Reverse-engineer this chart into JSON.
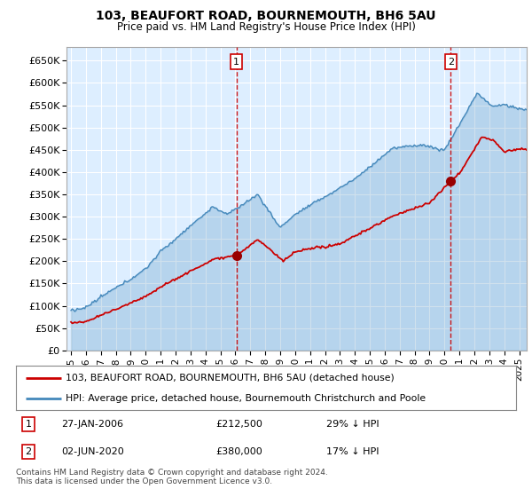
{
  "title": "103, BEAUFORT ROAD, BOURNEMOUTH, BH6 5AU",
  "subtitle": "Price paid vs. HM Land Registry's House Price Index (HPI)",
  "ylim": [
    0,
    680000
  ],
  "ytick_vals": [
    0,
    50000,
    100000,
    150000,
    200000,
    250000,
    300000,
    350000,
    400000,
    450000,
    500000,
    550000,
    600000,
    650000
  ],
  "ytick_labels": [
    "£0",
    "£50K",
    "£100K",
    "£150K",
    "£200K",
    "£250K",
    "£300K",
    "£350K",
    "£400K",
    "£450K",
    "£500K",
    "£550K",
    "£600K",
    "£650K"
  ],
  "xlim_start": 1994.7,
  "xlim_end": 2025.5,
  "background_color": "#ffffff",
  "plot_bg_color": "#ddeeff",
  "grid_color": "#ffffff",
  "sale1_x": 2006.08,
  "sale1_y": 212500,
  "sale2_x": 2020.42,
  "sale2_y": 380000,
  "legend_line1": "103, BEAUFORT ROAD, BOURNEMOUTH, BH6 5AU (detached house)",
  "legend_line2": "HPI: Average price, detached house, Bournemouth Christchurch and Poole",
  "footer": "Contains HM Land Registry data © Crown copyright and database right 2024.\nThis data is licensed under the Open Government Licence v3.0.",
  "line_color_red": "#cc0000",
  "line_color_blue": "#4488bb",
  "fill_color_blue": "#cce0f0",
  "marker_color_red": "#990000",
  "vline_color": "#cc0000",
  "box_color": "#cc0000"
}
